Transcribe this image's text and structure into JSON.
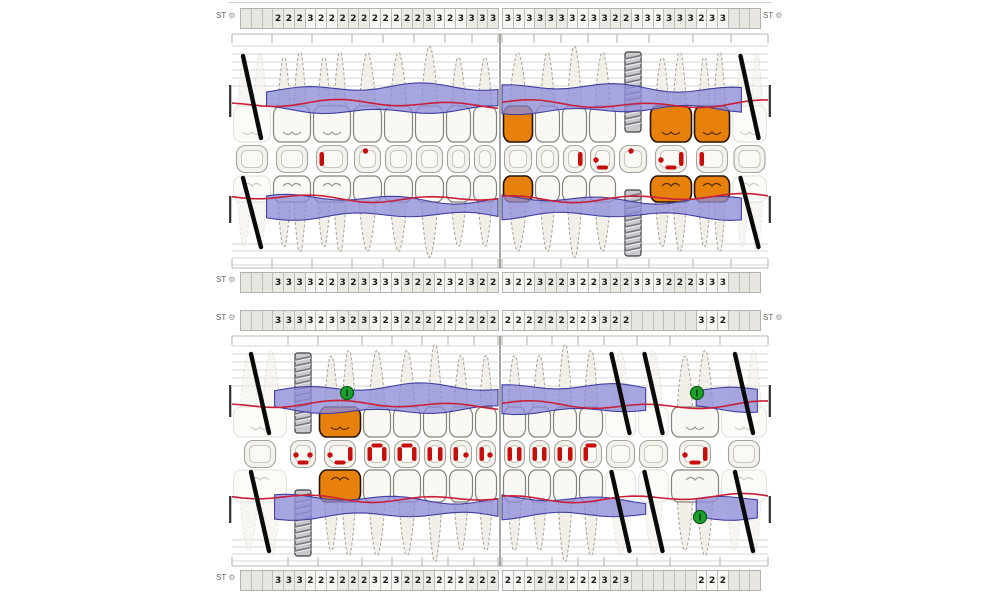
{
  "app": {
    "st_label": "ST"
  },
  "colors": {
    "band": "#8f8dd8",
    "band_edge": "#413fa0",
    "gum_line": "#c9203a",
    "crown_orange": "#e8800c",
    "tooth_fill": "#f9f8f3",
    "root_fill": "#f1efe7",
    "tooth_outline": "#83827b",
    "root_outline": "#a5a49c",
    "ghost_outline": "#ccccc4",
    "marker_green": "#1ea12c",
    "mark_red": "#c80d0d",
    "grid": "#d6d5d1",
    "slash": "#0a0a0a"
  },
  "strips": {
    "chart1_top_left": [
      "",
      "",
      "",
      "2",
      "2",
      "2",
      "3",
      "2",
      "2",
      "2",
      "2",
      "2",
      "2",
      "2",
      "2",
      "2",
      "2",
      "3",
      "3",
      "2",
      "3",
      "3",
      "3",
      "3"
    ],
    "chart1_top_right": [
      "3",
      "3",
      "3",
      "3",
      "3",
      "3",
      "3",
      "2",
      "3",
      "3",
      "2",
      "2",
      "3",
      "3",
      "3",
      "3",
      "3",
      "3",
      "2",
      "3",
      "3",
      "",
      "",
      ""
    ],
    "chart1_bottom_left": [
      "",
      "",
      "",
      "3",
      "3",
      "3",
      "3",
      "2",
      "2",
      "3",
      "2",
      "3",
      "3",
      "3",
      "3",
      "3",
      "2",
      "2",
      "2",
      "3",
      "2",
      "3",
      "2",
      "2"
    ],
    "chart1_bottom_right": [
      "3",
      "2",
      "2",
      "3",
      "2",
      "2",
      "3",
      "2",
      "2",
      "3",
      "2",
      "2",
      "3",
      "3",
      "3",
      "2",
      "2",
      "2",
      "3",
      "3",
      "3",
      "",
      "",
      ""
    ],
    "chart2_top_left": [
      "",
      "",
      "",
      "3",
      "3",
      "3",
      "3",
      "2",
      "3",
      "3",
      "2",
      "3",
      "3",
      "2",
      "3",
      "2",
      "2",
      "2",
      "2",
      "2",
      "2",
      "2",
      "2",
      "2"
    ],
    "chart2_top_right": [
      "2",
      "2",
      "2",
      "2",
      "2",
      "2",
      "2",
      "2",
      "3",
      "3",
      "2",
      "2",
      "",
      "",
      "",
      "",
      "",
      "",
      "3",
      "3",
      "2",
      "",
      "",
      ""
    ],
    "chart2_bottom_left": [
      "",
      "",
      "",
      "3",
      "3",
      "3",
      "2",
      "2",
      "2",
      "2",
      "2",
      "2",
      "3",
      "2",
      "3",
      "2",
      "2",
      "2",
      "2",
      "2",
      "2",
      "2",
      "2",
      "2"
    ],
    "chart2_bottom_right": [
      "2",
      "2",
      "2",
      "2",
      "2",
      "2",
      "2",
      "2",
      "2",
      "3",
      "2",
      "3",
      "",
      "",
      "",
      "",
      "",
      "",
      "2",
      "2",
      "2",
      "",
      "",
      ""
    ]
  },
  "charts": [
    {
      "name": "upper-jaw-chart",
      "rows": {
        "upper_view": {
          "left": {
            "band_segments": [
              [
                0.13,
                1
              ]
            ],
            "teeth": [
              {
                "type": "molar",
                "status": "missing"
              },
              {
                "type": "molar"
              },
              {
                "type": "molar"
              },
              {
                "type": "premolar"
              },
              {
                "type": "premolar"
              },
              {
                "type": "canine"
              },
              {
                "type": "incisor"
              },
              {
                "type": "incisor"
              }
            ]
          },
          "right": {
            "band_segments": [
              [
                0,
                0.9
              ]
            ],
            "teeth": [
              {
                "type": "premolar",
                "crown": "orange"
              },
              {
                "type": "premolar"
              },
              {
                "type": "canine"
              },
              {
                "type": "premolar"
              },
              {
                "type": "premolar",
                "status": "implant"
              },
              {
                "type": "molar",
                "crown": "orange"
              },
              {
                "type": "molar",
                "crown": "orange"
              },
              {
                "type": "molar",
                "status": "missing"
              }
            ]
          }
        },
        "occlusal": {
          "left": {
            "marks": [
              [],
              [],
              [
                "left-bar"
              ],
              [
                "top-dot"
              ],
              [],
              [],
              [],
              []
            ]
          },
          "right": {
            "marks": [
              [],
              [],
              [
                "right-bar"
              ],
              [
                "left-dot",
                "bottom-dash"
              ],
              [
                "top-dot"
              ],
              [
                "left-dot",
                "bottom-dash",
                "right-bar"
              ],
              [
                "left-bar"
              ],
              []
            ]
          }
        },
        "lower_view": {
          "left": {
            "band_segments": [
              [
                0.13,
                1
              ]
            ],
            "teeth": [
              {
                "type": "molar",
                "status": "missing"
              },
              {
                "type": "molar"
              },
              {
                "type": "molar"
              },
              {
                "type": "premolar"
              },
              {
                "type": "premolar"
              },
              {
                "type": "canine"
              },
              {
                "type": "incisor"
              },
              {
                "type": "incisor"
              }
            ]
          },
          "right": {
            "band_segments": [
              [
                0,
                0.9
              ]
            ],
            "teeth": [
              {
                "type": "premolar",
                "crown": "orange"
              },
              {
                "type": "premolar"
              },
              {
                "type": "canine"
              },
              {
                "type": "premolar"
              },
              {
                "type": "premolar",
                "status": "implant"
              },
              {
                "type": "molar",
                "crown": "orange"
              },
              {
                "type": "molar",
                "crown": "orange"
              },
              {
                "type": "molar",
                "status": "missing"
              }
            ]
          }
        }
      }
    },
    {
      "name": "lower-jaw-chart",
      "rows": {
        "upper_view": {
          "left": {
            "band_segments": [
              [
                0.16,
                1
              ]
            ],
            "teeth": [
              {
                "type": "molar",
                "status": "missing"
              },
              {
                "type": "premolar",
                "status": "implant"
              },
              {
                "type": "molar",
                "crown": "orange",
                "marker": "green",
                "marker_dx": 7
              },
              {
                "type": "premolar"
              },
              {
                "type": "premolar"
              },
              {
                "type": "canine"
              },
              {
                "type": "incisor"
              },
              {
                "type": "incisor"
              }
            ]
          },
          "right": {
            "band_segments": [
              [
                0,
                0.54
              ],
              [
                0.73,
                0.96
              ]
            ],
            "teeth": [
              {
                "type": "incisor"
              },
              {
                "type": "incisor"
              },
              {
                "type": "canine"
              },
              {
                "type": "premolar"
              },
              {
                "type": "premolar",
                "status": "missing"
              },
              {
                "type": "premolar",
                "status": "missing"
              },
              {
                "type": "molar",
                "marker": "green",
                "marker_dx": 2
              },
              {
                "type": "molar",
                "status": "missing"
              }
            ]
          }
        },
        "occlusal": {
          "left": {
            "marks": [
              [],
              [
                "left-dot",
                "bottom-dash",
                "right-dot"
              ],
              [
                "left-dot",
                "bottom-dash",
                "right-bar"
              ],
              [
                "left-bar",
                "top-dash",
                "right-bar"
              ],
              [
                "left-bar",
                "top-dash",
                "right-bar"
              ],
              [
                "left-bar",
                "right-bar"
              ],
              [
                "left-bar",
                "right-dot"
              ],
              [
                "left-bar",
                "right-dot"
              ]
            ]
          },
          "right": {
            "marks": [
              [
                "left-bar",
                "right-bar"
              ],
              [
                "left-bar",
                "right-bar"
              ],
              [
                "left-bar",
                "right-bar"
              ],
              [
                "left-bar",
                "top-dash"
              ],
              [],
              [],
              [
                "left-dot",
                "bottom-dash",
                "right-bar"
              ],
              []
            ]
          }
        },
        "lower_view": {
          "left": {
            "band_segments": [
              [
                0.16,
                1
              ]
            ],
            "teeth": [
              {
                "type": "molar",
                "status": "missing"
              },
              {
                "type": "premolar",
                "status": "implant"
              },
              {
                "type": "molar",
                "crown": "orange"
              },
              {
                "type": "premolar"
              },
              {
                "type": "premolar"
              },
              {
                "type": "canine"
              },
              {
                "type": "incisor"
              },
              {
                "type": "incisor"
              }
            ]
          },
          "right": {
            "band_segments": [
              [
                0,
                0.54
              ],
              [
                0.73,
                0.96
              ]
            ],
            "teeth": [
              {
                "type": "incisor"
              },
              {
                "type": "incisor"
              },
              {
                "type": "canine"
              },
              {
                "type": "premolar"
              },
              {
                "type": "premolar",
                "status": "missing"
              },
              {
                "type": "premolar",
                "status": "missing"
              },
              {
                "type": "molar",
                "marker": "green",
                "marker_dx": 5
              },
              {
                "type": "molar",
                "status": "missing"
              }
            ]
          }
        }
      }
    }
  ]
}
